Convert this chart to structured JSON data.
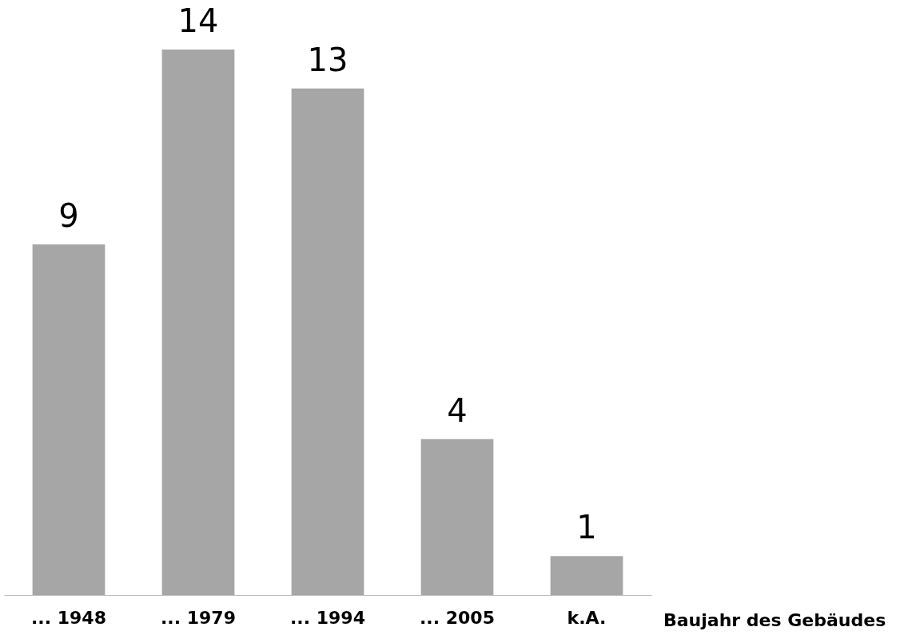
{
  "chart_data": {
    "type": "bar",
    "categories": [
      "... 1948",
      "... 1979",
      "... 1994",
      "... 2005",
      "k.A."
    ],
    "values": [
      9,
      14,
      13,
      4,
      1
    ],
    "color": "#a6a6a6",
    "data_labels": true,
    "xlabel": "Baujahr des Gebäudes"
  }
}
